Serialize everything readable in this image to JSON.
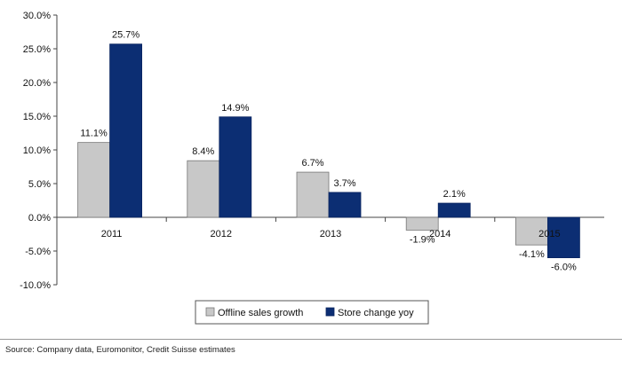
{
  "chart_data": {
    "type": "bar",
    "categories": [
      "2011",
      "2012",
      "2013",
      "2014",
      "2015"
    ],
    "series": [
      {
        "name": "Offline sales growth",
        "color": "#c8c8c8",
        "values": [
          11.1,
          8.4,
          6.7,
          -1.9,
          -4.1
        ],
        "labels": [
          "11.1%",
          "8.4%",
          "6.7%",
          "-1.9%",
          "-4.1%"
        ]
      },
      {
        "name": "Store change yoy",
        "color": "#0c2e73",
        "values": [
          25.7,
          14.9,
          3.7,
          2.1,
          -6.0
        ],
        "labels": [
          "25.7%",
          "14.9%",
          "3.7%",
          "2.1%",
          "-6.0%"
        ]
      }
    ],
    "ylim": [
      -10,
      30
    ],
    "yticks": [
      30,
      25,
      20,
      15,
      10,
      5,
      0,
      -5,
      -10
    ],
    "ytick_labels": [
      "30.0%",
      "25.0%",
      "20.0%",
      "15.0%",
      "10.0%",
      "5.0%",
      "0.0%",
      "-5.0%",
      "-10.0%"
    ],
    "legend_position": "bottom-center",
    "grid": false
  },
  "footer": {
    "source": "Source: Company data, Euromonitor, Credit Suisse estimates"
  }
}
